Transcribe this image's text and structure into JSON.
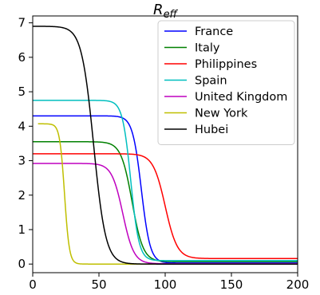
{
  "chart_data": {
    "type": "line",
    "title": {
      "base": "R",
      "subscript": "eff"
    },
    "xlim": [
      0,
      200
    ],
    "ylim": [
      -0.25,
      7.2
    ],
    "x_ticks": [
      0,
      50,
      100,
      150,
      200
    ],
    "y_ticks": [
      0,
      1,
      2,
      3,
      4,
      5,
      6,
      7
    ],
    "grid": false,
    "legend_position": "top-right",
    "series": [
      {
        "name": "France",
        "color": "#0000ff",
        "start": 4.3,
        "end": 0.03,
        "midpoint": 82,
        "steepness": 0.3,
        "x_start": 0
      },
      {
        "name": "Italy",
        "color": "#008000",
        "start": 3.55,
        "end": 0.07,
        "midpoint": 75,
        "steepness": 0.24,
        "x_start": 0
      },
      {
        "name": "Philippines",
        "color": "#ff0000",
        "start": 3.2,
        "end": 0.16,
        "midpoint": 100,
        "steepness": 0.22,
        "x_start": 0
      },
      {
        "name": "Spain",
        "color": "#00bfbf",
        "start": 4.75,
        "end": 0.1,
        "midpoint": 74,
        "steepness": 0.32,
        "x_start": 0
      },
      {
        "name": "United Kingdom",
        "color": "#bf00bf",
        "start": 2.92,
        "end": 0.01,
        "midpoint": 68,
        "steepness": 0.24,
        "x_start": 0
      },
      {
        "name": "New York",
        "color": "#bfbf00",
        "start": 4.07,
        "end": 0.0,
        "midpoint": 24,
        "steepness": 0.55,
        "x_start": 4
      },
      {
        "name": "Hubei",
        "color": "#000000",
        "start": 6.9,
        "end": 0.0,
        "midpoint": 46,
        "steepness": 0.22,
        "x_start": 0
      }
    ]
  }
}
